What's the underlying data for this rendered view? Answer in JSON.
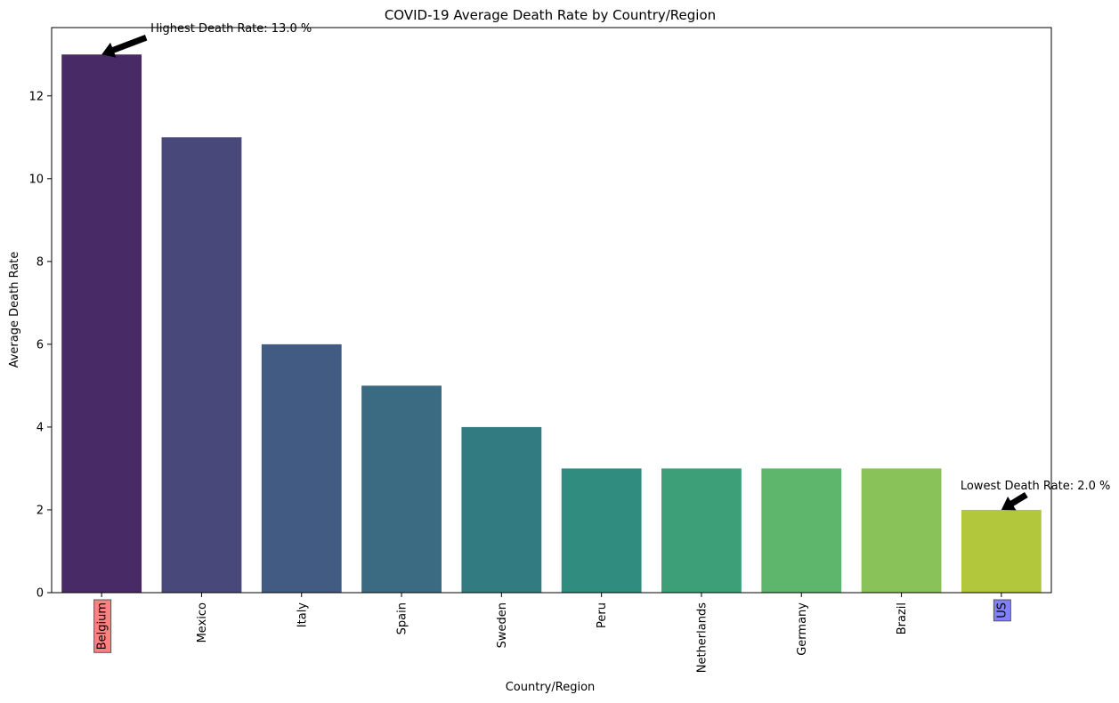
{
  "chart_data": {
    "type": "bar",
    "title": "COVID-19 Average Death Rate by Country/Region",
    "xlabel": "Country/Region",
    "ylabel": "Average Death Rate",
    "categories": [
      "Belgium",
      "Mexico",
      "Italy",
      "Spain",
      "Sweden",
      "Peru",
      "Netherlands",
      "Germany",
      "Brazil",
      "US"
    ],
    "values": [
      13,
      11,
      6,
      5,
      4,
      3,
      3,
      3,
      3,
      2
    ],
    "colors": [
      "#482a67",
      "#48487b",
      "#425b83",
      "#3a6b82",
      "#327b81",
      "#2f8c7e",
      "#3c9f78",
      "#5eb56c",
      "#8ac25a",
      "#b3c73c"
    ],
    "ylim": [
      0,
      13.65
    ],
    "yticks": [
      0,
      2,
      4,
      6,
      8,
      10,
      12
    ],
    "grid": false,
    "highlight": {
      "highest": {
        "category": "Belgium",
        "text_color": "#ff0000",
        "box_color": "#ff8080"
      },
      "lowest": {
        "category": "US",
        "text_color": "#0000ff",
        "box_color": "#8080ff"
      }
    },
    "annotations": [
      {
        "text": "Highest Death Rate: 13.0 %",
        "category": "Belgium",
        "value": 13.0
      },
      {
        "text": "Lowest Death Rate: 2.0 %",
        "category": "US",
        "value": 2.0
      }
    ]
  }
}
